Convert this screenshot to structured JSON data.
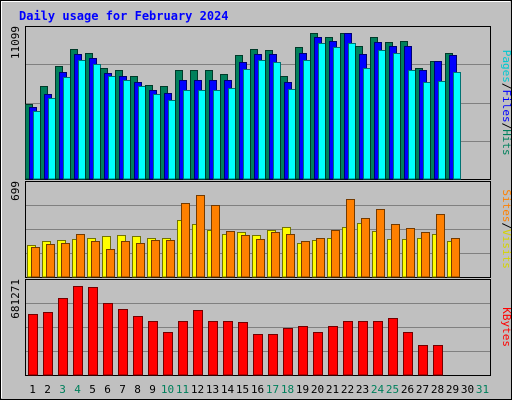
{
  "chart_data": {
    "type": "bar",
    "title": "Daily usage for February 2024",
    "categories": [
      "1",
      "2",
      "3",
      "4",
      "5",
      "6",
      "7",
      "8",
      "9",
      "10",
      "11",
      "12",
      "13",
      "14",
      "15",
      "16",
      "17",
      "18",
      "19",
      "20",
      "21",
      "22",
      "23",
      "24",
      "25",
      "26",
      "27",
      "28",
      "29",
      "30",
      "31"
    ],
    "weekend_days": [
      "3",
      "4",
      "10",
      "11",
      "17",
      "18",
      "24",
      "25",
      "31"
    ],
    "panels": [
      {
        "id": "hits-panel",
        "ymax_label": "11099",
        "ylim": [
          0,
          11099
        ],
        "axis_labels": [
          "Pages",
          "Files",
          "Hits"
        ],
        "series": [
          {
            "name": "Hits",
            "color": "#00805c",
            "values": [
              5600,
              6900,
              8400,
              9700,
              9400,
              8300,
              8100,
              7700,
              7000,
              6900,
              8100,
              8100,
              8100,
              7800,
              9200,
              9700,
              9600,
              7700,
              9800,
              10900,
              10600,
              10900,
              9900,
              10600,
              10200,
              10300,
              8300,
              8800,
              9400,
              null,
              null
            ]
          },
          {
            "name": "Files",
            "color": "#0000ff",
            "values": [
              5400,
              6300,
              8000,
              9300,
              9000,
              7900,
              7700,
              7200,
              6600,
              6400,
              7400,
              7400,
              7400,
              7400,
              8700,
              9300,
              9300,
              7200,
              9400,
              10600,
              10300,
              10900,
              9300,
              10200,
              9900,
              9900,
              8100,
              8800,
              9200,
              null,
              null
            ]
          },
          {
            "name": "Pages",
            "color": "#00ffff",
            "values": [
              5100,
              6000,
              7600,
              8900,
              8600,
              7700,
              7400,
              6900,
              6300,
              5900,
              6600,
              6600,
              6600,
              6800,
              8200,
              8900,
              8700,
              6700,
              8900,
              10100,
              9800,
              10100,
              8300,
              9600,
              9400,
              8100,
              7200,
              7300,
              8000,
              null,
              null
            ]
          }
        ]
      },
      {
        "id": "visits-panel",
        "ymax_label": "699",
        "ylim": [
          0,
          699
        ],
        "axis_labels": [
          "Sites",
          "Visits"
        ],
        "series": [
          {
            "name": "Visits",
            "color": "#ffff00",
            "values": [
              240,
              270,
              280,
              290,
              300,
              310,
              320,
              310,
              300,
              300,
              430,
              400,
              360,
              330,
              340,
              320,
              360,
              380,
              260,
              280,
              300,
              380,
              410,
              350,
              290,
              290,
              300,
              330,
              270,
              null,
              null
            ]
          },
          {
            "name": "Sites",
            "color": "#ff8000",
            "values": [
              230,
              250,
              260,
              330,
              270,
              210,
              270,
              260,
              280,
              280,
              560,
              620,
              550,
              350,
              320,
              290,
              340,
              330,
              270,
              300,
              360,
              590,
              450,
              520,
              400,
              370,
              340,
              480,
              300,
              null,
              null
            ]
          }
        ]
      },
      {
        "id": "kbytes-panel",
        "ymax_label": "681271",
        "ylim": [
          0,
          681271
        ],
        "axis_labels": [
          "KBytes"
        ],
        "series": [
          {
            "name": "KBytes",
            "color": "#ff0000",
            "values": [
              450000,
              470000,
              570000,
              660000,
              650000,
              530000,
              490000,
              440000,
              400000,
              320000,
              400000,
              480000,
              400000,
              400000,
              390000,
              300000,
              300000,
              350000,
              360000,
              320000,
              360000,
              400000,
              400000,
              400000,
              420000,
              320000,
              220000,
              220000,
              null,
              null,
              null
            ]
          }
        ]
      }
    ]
  },
  "colors": {
    "background": "#c0c0c0",
    "title": "#0000ff",
    "weekday_label": "#000000",
    "weekend_label": "#00805c"
  }
}
